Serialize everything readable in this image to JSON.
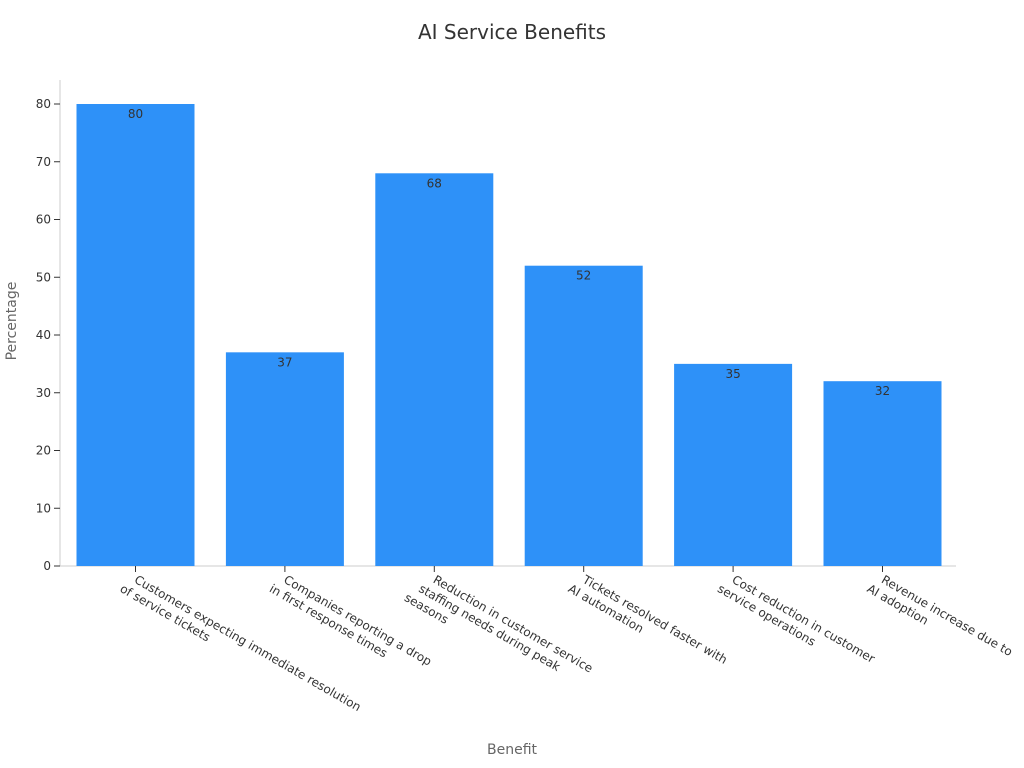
{
  "chart_data": {
    "type": "bar",
    "title": "AI Service Benefits",
    "xlabel": "Benefit",
    "ylabel": "Percentage",
    "categories": [
      "Customers expecting immediate resolution of service tickets",
      "Companies reporting a drop in first response times",
      "Reduction in customer service staffing needs during peak seasons",
      "Tickets resolved faster with AI automation",
      "Cost reduction in customer service operations",
      "Revenue increase due to AI adoption"
    ],
    "category_lines": [
      [
        "Customers expecting immediate resolution",
        "of service tickets"
      ],
      [
        "Companies reporting a drop",
        "in first response times"
      ],
      [
        "Reduction in customer service",
        "staffing needs during peak",
        "seasons"
      ],
      [
        "Tickets resolved faster with",
        "AI automation"
      ],
      [
        "Cost reduction in customer",
        "service operations"
      ],
      [
        "Revenue increase due to",
        "AI adoption"
      ]
    ],
    "values": [
      80,
      37,
      68,
      52,
      35,
      32
    ],
    "data_labels": [
      "80",
      "37",
      "68",
      "52",
      "35",
      "32"
    ],
    "yticks": [
      0,
      10,
      20,
      30,
      40,
      50,
      60,
      70,
      80
    ],
    "ylim": [
      0,
      80
    ],
    "grid": false,
    "legend": "none",
    "colors": {
      "bar": "#2e91f8",
      "axis": "#cccccc",
      "tick_text": "#333333",
      "label_text": "#333333"
    }
  }
}
